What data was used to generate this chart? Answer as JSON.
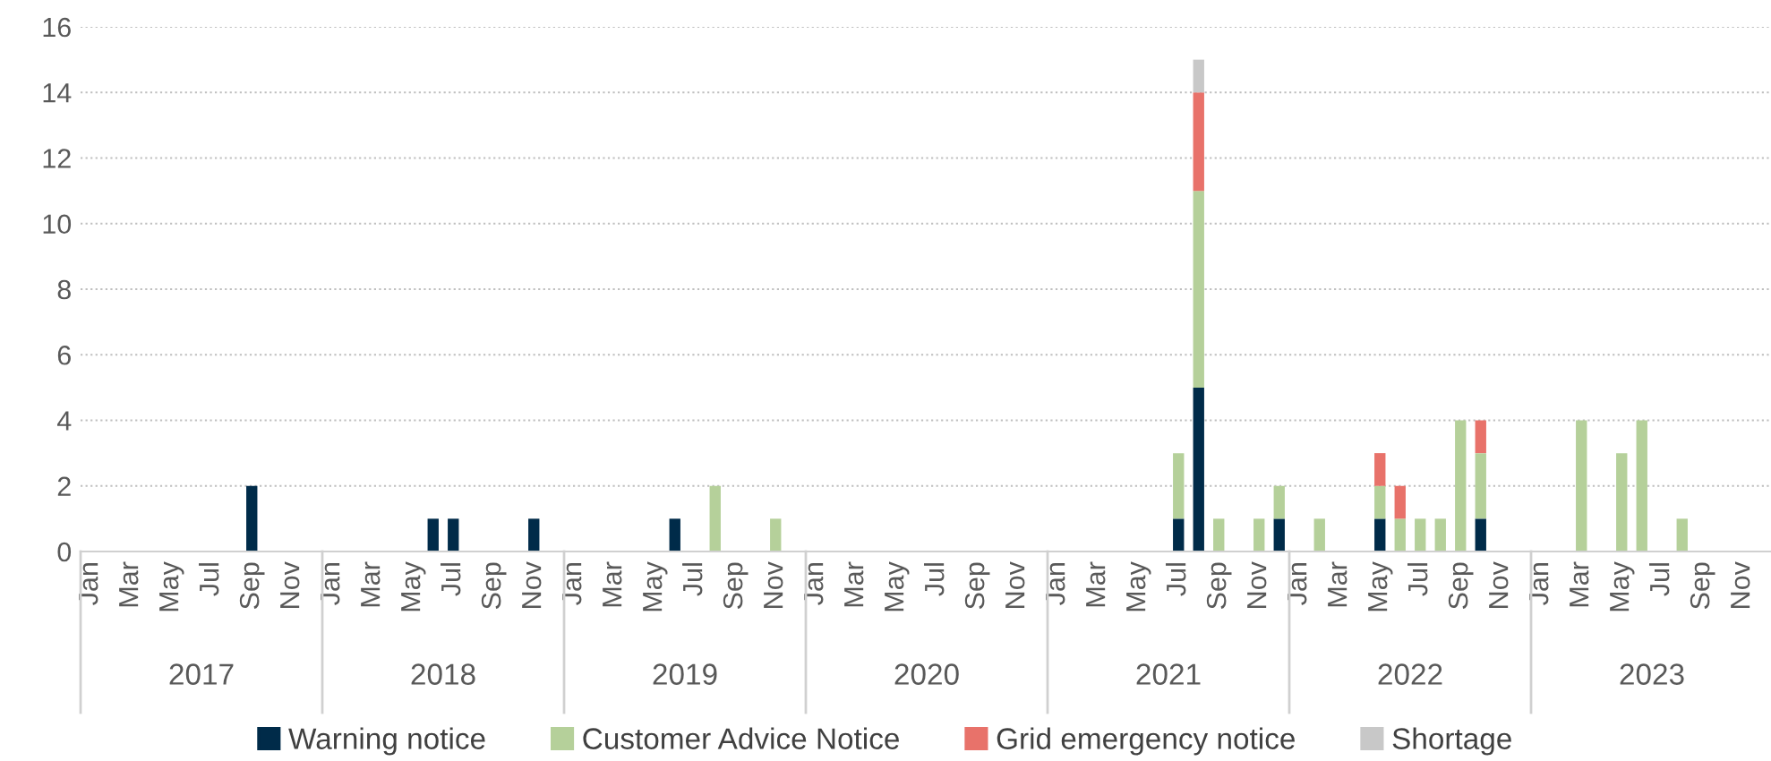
{
  "chart_data": {
    "type": "bar",
    "stacked": true,
    "categories": [
      "Jan",
      null,
      "Mar",
      null,
      "May",
      null,
      "Jul",
      null,
      "Sep",
      null,
      "Nov",
      null,
      "Jan",
      null,
      "Mar",
      null,
      "May",
      null,
      "Jul",
      null,
      "Sep",
      null,
      "Nov",
      null,
      "Jan",
      null,
      "Mar",
      null,
      "May",
      null,
      "Jul",
      null,
      "Sep",
      null,
      "Nov",
      null,
      "Jan",
      null,
      "Mar",
      null,
      "May",
      null,
      "Jul",
      null,
      "Sep",
      null,
      "Nov",
      null,
      "Jan",
      null,
      "Mar",
      null,
      "May",
      null,
      "Jul",
      null,
      "Sep",
      null,
      "Nov",
      null,
      "Jan",
      null,
      "Mar",
      null,
      "May",
      null,
      "Jul",
      null,
      "Sep",
      null,
      "Nov",
      null,
      "Jan",
      null,
      "Mar",
      null,
      "May",
      null,
      "Jul",
      null,
      "Sep",
      null,
      "Nov",
      null
    ],
    "series": [
      {
        "name": "Warning notice",
        "color": "#002b49",
        "values": [
          null,
          null,
          null,
          null,
          null,
          null,
          null,
          null,
          2,
          null,
          null,
          null,
          null,
          null,
          null,
          null,
          null,
          1,
          1,
          null,
          null,
          null,
          1,
          null,
          null,
          null,
          null,
          null,
          null,
          1,
          null,
          null,
          null,
          null,
          null,
          null,
          null,
          null,
          null,
          null,
          null,
          null,
          null,
          null,
          null,
          null,
          null,
          null,
          null,
          null,
          null,
          null,
          null,
          null,
          1,
          5,
          null,
          null,
          null,
          1,
          null,
          null,
          null,
          null,
          1,
          null,
          null,
          null,
          null,
          1,
          null,
          null,
          null,
          null,
          null,
          null,
          null,
          null,
          null,
          null,
          null,
          null,
          null,
          null
        ]
      },
      {
        "name": "Customer Advice Notice",
        "color": "#b5d09a",
        "values": [
          null,
          null,
          null,
          null,
          null,
          null,
          null,
          null,
          null,
          null,
          null,
          null,
          null,
          null,
          null,
          null,
          null,
          null,
          null,
          null,
          null,
          null,
          null,
          null,
          null,
          null,
          null,
          null,
          null,
          null,
          null,
          2,
          null,
          null,
          1,
          null,
          null,
          null,
          null,
          null,
          null,
          null,
          null,
          null,
          null,
          null,
          null,
          null,
          null,
          null,
          null,
          null,
          null,
          null,
          2,
          6,
          1,
          null,
          1,
          1,
          null,
          1,
          null,
          null,
          1,
          1,
          1,
          1,
          4,
          2,
          null,
          null,
          null,
          null,
          4,
          null,
          3,
          4,
          null,
          1,
          null,
          null,
          null,
          null
        ]
      },
      {
        "name": "Grid emergency notice",
        "color": "#e8726a",
        "values": [
          null,
          null,
          null,
          null,
          null,
          null,
          null,
          null,
          null,
          null,
          null,
          null,
          null,
          null,
          null,
          null,
          null,
          null,
          null,
          null,
          null,
          null,
          null,
          null,
          null,
          null,
          null,
          null,
          null,
          null,
          null,
          null,
          null,
          null,
          null,
          null,
          null,
          null,
          null,
          null,
          null,
          null,
          null,
          null,
          null,
          null,
          null,
          null,
          null,
          null,
          null,
          null,
          null,
          null,
          null,
          3,
          null,
          null,
          null,
          null,
          null,
          null,
          null,
          null,
          1,
          1,
          null,
          null,
          null,
          1,
          null,
          null,
          null,
          null,
          null,
          null,
          null,
          null,
          null,
          null,
          null,
          null,
          null,
          null
        ]
      },
      {
        "name": "Shortage",
        "color": "#c8c8c8",
        "values": [
          null,
          null,
          null,
          null,
          null,
          null,
          null,
          null,
          null,
          null,
          null,
          null,
          null,
          null,
          null,
          null,
          null,
          null,
          null,
          null,
          null,
          null,
          null,
          null,
          null,
          null,
          null,
          null,
          null,
          null,
          null,
          null,
          null,
          null,
          null,
          null,
          null,
          null,
          null,
          null,
          null,
          null,
          null,
          null,
          null,
          null,
          null,
          null,
          null,
          null,
          null,
          null,
          null,
          null,
          null,
          1,
          null,
          null,
          null,
          null,
          null,
          null,
          null,
          null,
          null,
          null,
          null,
          null,
          null,
          null,
          null,
          null,
          null,
          null,
          null,
          null,
          null,
          null,
          null,
          null,
          null,
          null,
          null,
          null
        ]
      }
    ],
    "ylim": [
      0,
      16
    ],
    "yticks": [
      0,
      2,
      4,
      6,
      8,
      10,
      12,
      14,
      16
    ],
    "grid": "y",
    "legend": "bottom",
    "annotations": [
      "2017",
      "2018",
      "2019",
      "2020",
      "2021",
      "2022",
      "2023"
    ]
  }
}
